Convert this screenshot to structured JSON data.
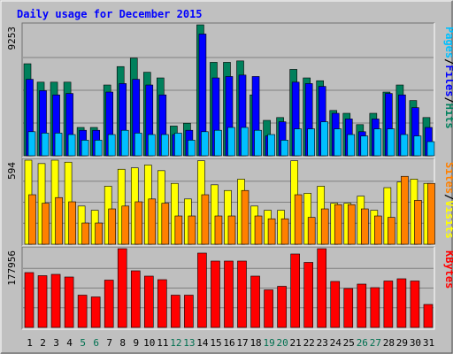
{
  "chart_data": {
    "type": "bar",
    "title": "Daily usage for December 2015",
    "days": [
      "1",
      "2",
      "3",
      "4",
      "5",
      "6",
      "7",
      "8",
      "9",
      "10",
      "11",
      "12",
      "13",
      "14",
      "15",
      "16",
      "17",
      "18",
      "19",
      "20",
      "21",
      "22",
      "23",
      "24",
      "25",
      "26",
      "27",
      "28",
      "29",
      "30",
      "31"
    ],
    "weekend_days": [
      "5",
      "6",
      "12",
      "13",
      "19",
      "20",
      "26",
      "27"
    ],
    "panels": [
      {
        "id": "top",
        "scale_label": "9253",
        "ylim": [
          0,
          9253
        ],
        "series": [
          {
            "name": "Hits",
            "color": "#00805c",
            "values": [
              6500,
              5200,
              5200,
              5200,
              2000,
              2000,
              5000,
              6300,
              6900,
              5900,
              5500,
              2100,
              2300,
              9250,
              6600,
              6600,
              6700,
              4300,
              2500,
              2700,
              6100,
              5500,
              5300,
              3200,
              3000,
              2200,
              3000,
              4500,
              5000,
              3900,
              2700
            ]
          },
          {
            "name": "Files",
            "color": "#0000ff",
            "values": [
              5400,
              4600,
              4300,
              4400,
              1800,
              1800,
              4500,
              5100,
              5400,
              5000,
              4300,
              1500,
              1800,
              8600,
              5500,
              5600,
              5700,
              5600,
              1400,
              2400,
              5200,
              5100,
              4900,
              3000,
              2600,
              1700,
              2600,
              4400,
              4300,
              3400,
              2000
            ]
          },
          {
            "name": "Pages",
            "color": "#00c0ff",
            "values": [
              1700,
              1600,
              1600,
              1500,
              1100,
              1100,
              1500,
              1800,
              1600,
              1500,
              1500,
              1600,
              1100,
              1700,
              1800,
              2000,
              2000,
              1800,
              1500,
              1100,
              1900,
              1900,
              2400,
              1900,
              1500,
              1400,
              1900,
              1900,
              1500,
              1400,
              1000
            ]
          }
        ]
      },
      {
        "id": "middle",
        "scale_label": "594",
        "ylim": [
          0,
          594
        ],
        "series": [
          {
            "name": "Visits",
            "color": "#ffff00",
            "values": [
              594,
              570,
              594,
              580,
              270,
              240,
              410,
              530,
              540,
              560,
              520,
              430,
              320,
              590,
              420,
              380,
              460,
              270,
              240,
              240,
              590,
              360,
              410,
              290,
              290,
              340,
              240,
              400,
              440,
              460,
              430
            ]
          },
          {
            "name": "Sites",
            "color": "#ff8000",
            "values": [
              350,
              290,
              330,
              300,
              150,
              150,
              250,
              270,
              300,
              320,
              290,
              200,
              200,
              350,
              200,
              200,
              380,
              200,
              180,
              180,
              350,
              190,
              250,
              280,
              280,
              250,
              200,
              190,
              480,
              310,
              430
            ]
          }
        ]
      },
      {
        "id": "bottom",
        "scale_label": "177956",
        "ylim": [
          0,
          177956
        ],
        "series": [
          {
            "name": "KBytes",
            "color": "#ff0000",
            "values": [
              124000,
              117000,
              120000,
              114000,
              73000,
              69000,
              107000,
              177956,
              128000,
              116000,
              108000,
              73000,
              73000,
              168000,
              150000,
              150000,
              150000,
              116000,
              85000,
              93000,
              166000,
              147000,
              177956,
              104000,
              88000,
              98000,
              90000,
              105000,
              110000,
              105000,
              52000
            ]
          }
        ]
      }
    ],
    "right_labels": {
      "top": [
        {
          "text": "Pages",
          "color": "#00c0ff"
        },
        {
          "text": "/",
          "color": "#000000"
        },
        {
          "text": "Files",
          "color": "#0000ff"
        },
        {
          "text": "/",
          "color": "#000000"
        },
        {
          "text": "Hits",
          "color": "#00805c"
        }
      ],
      "middle": [
        {
          "text": "Sites",
          "color": "#ff8000"
        },
        {
          "text": "/",
          "color": "#000000"
        },
        {
          "text": "Visits",
          "color": "#ffff00"
        }
      ],
      "bottom": [
        {
          "text": "KBytes",
          "color": "#ff0000"
        }
      ]
    },
    "colors": {
      "background": "#c0c0c0",
      "plot_background": "#bfbfbf",
      "title": "#0000ff",
      "weekend_label": "#007050",
      "weekday_label": "#000000",
      "grid": "#808080"
    }
  }
}
